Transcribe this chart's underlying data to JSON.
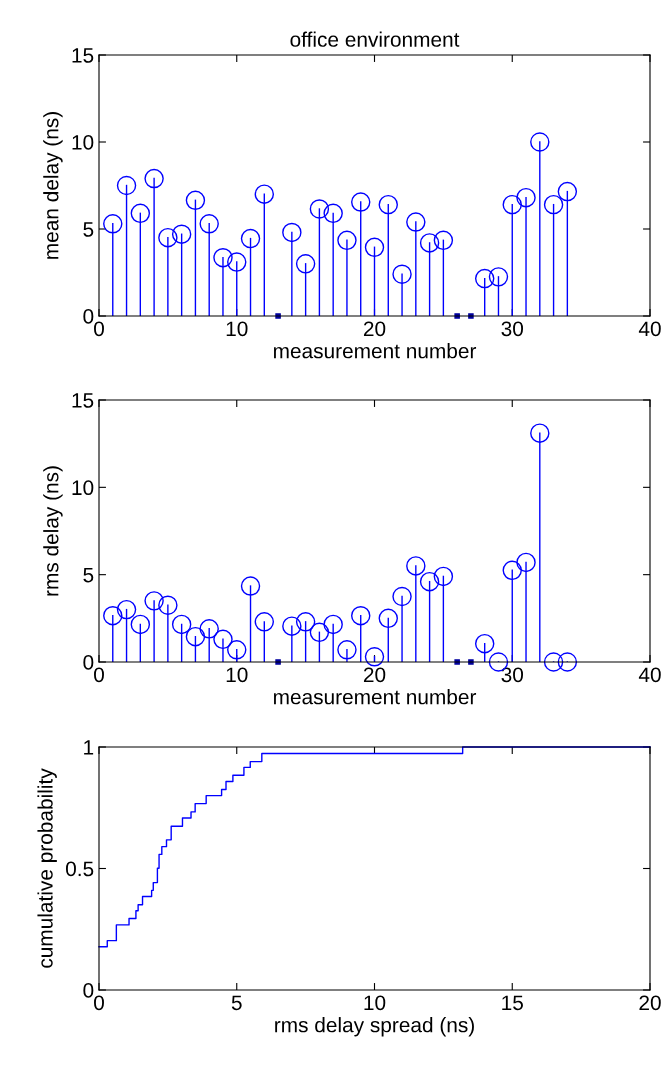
{
  "chart_data": [
    {
      "type": "lollipop",
      "title": "office environment",
      "xlabel": "measurement number",
      "ylabel": "mean delay (ns)",
      "xlim": [
        0,
        40
      ],
      "xticks": [
        0,
        10,
        20,
        30,
        40
      ],
      "ylim": [
        0,
        15
      ],
      "yticks": [
        0,
        5,
        10,
        15
      ],
      "grid": false,
      "marker": "circle",
      "series": [
        {
          "color": "#0000ff",
          "x": [
            1,
            2,
            3,
            4,
            5,
            6,
            7,
            8,
            9,
            10,
            11,
            12,
            14,
            15,
            16,
            17,
            18,
            19,
            20,
            21,
            22,
            23,
            24,
            25,
            28,
            29,
            30,
            31,
            32,
            33,
            34
          ],
          "values": [
            5.3,
            7.5,
            5.9,
            7.9,
            4.5,
            4.7,
            6.65,
            5.3,
            3.35,
            3.1,
            4.45,
            7.0,
            4.8,
            3.0,
            6.15,
            5.9,
            4.35,
            6.55,
            3.95,
            6.4,
            2.4,
            5.4,
            4.2,
            4.35,
            2.15,
            2.25,
            6.4,
            6.8,
            10.0,
            6.4,
            7.15
          ]
        },
        {
          "type": "scatter",
          "marker": "square",
          "color": "#0000a0",
          "x": [
            13,
            26,
            27
          ],
          "values": [
            0,
            0,
            0
          ]
        }
      ]
    },
    {
      "type": "lollipop",
      "xlabel": "measurement number",
      "ylabel": "rms delay (ns)",
      "xlim": [
        0,
        40
      ],
      "xticks": [
        0,
        10,
        20,
        30,
        40
      ],
      "ylim": [
        0,
        15
      ],
      "yticks": [
        0,
        5,
        10,
        15
      ],
      "grid": false,
      "marker": "circle",
      "series": [
        {
          "color": "#0000ff",
          "x": [
            1,
            2,
            3,
            4,
            5,
            6,
            7,
            8,
            9,
            10,
            11,
            12,
            14,
            15,
            16,
            17,
            18,
            19,
            20,
            21,
            22,
            23,
            24,
            25,
            28,
            29,
            30,
            31,
            32,
            33,
            34
          ],
          "values": [
            2.65,
            3.0,
            2.15,
            3.5,
            3.25,
            2.15,
            1.45,
            1.9,
            1.3,
            0.7,
            4.35,
            2.3,
            2.05,
            2.3,
            1.7,
            2.15,
            0.7,
            2.65,
            0.3,
            2.5,
            3.75,
            5.5,
            4.6,
            4.9,
            1.05,
            0,
            5.25,
            5.7,
            13.1,
            0,
            0
          ]
        },
        {
          "type": "scatter",
          "marker": "square",
          "color": "#0000a0",
          "x": [
            13,
            26,
            27
          ],
          "values": [
            0,
            0,
            0
          ]
        }
      ]
    },
    {
      "type": "step",
      "xlabel": "rms delay spread (ns)",
      "ylabel": "cumulative probability",
      "xlim": [
        0,
        20
      ],
      "xticks": [
        0,
        5,
        10,
        15,
        20
      ],
      "ylim": [
        0,
        1
      ],
      "yticks": [
        0,
        0.5,
        1
      ],
      "grid": false,
      "marker": "none",
      "series": [
        {
          "color": "#0000ff",
          "x": [
            0,
            0.3,
            0.63,
            1.09,
            1.34,
            1.42,
            1.58,
            1.91,
            1.97,
            2.12,
            2.18,
            2.28,
            2.45,
            2.62,
            3.03,
            3.34,
            3.49,
            3.89,
            4.45,
            4.61,
            4.86,
            5.26,
            5.49,
            5.91,
            13.2,
            20
          ],
          "values": [
            0.178,
            0.203,
            0.268,
            0.294,
            0.326,
            0.351,
            0.385,
            0.41,
            0.442,
            0.501,
            0.558,
            0.59,
            0.618,
            0.674,
            0.708,
            0.733,
            0.767,
            0.8,
            0.825,
            0.858,
            0.884,
            0.916,
            0.94,
            0.973,
            1.0,
            1.0
          ]
        }
      ]
    }
  ]
}
